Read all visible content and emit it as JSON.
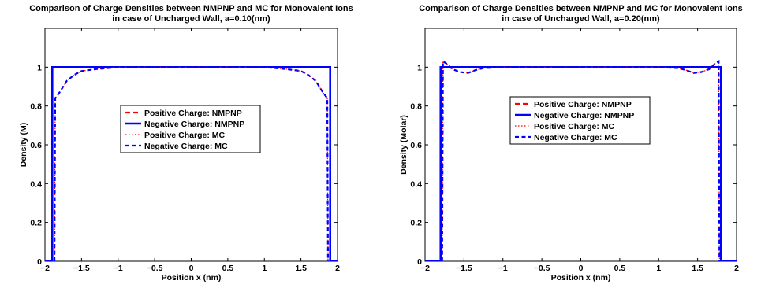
{
  "chart_data": [
    {
      "type": "line",
      "title": "Comparison of Charge Densities between NMPNP and MC for Monovalent Ions",
      "subtitle": "in case of Uncharged Wall, a=0.10(nm)",
      "xlabel": "Position x (nm)",
      "ylabel": "Density (M)",
      "xlim": [
        -2,
        2
      ],
      "ylim": [
        0,
        1.2
      ],
      "xticks": [
        "−2",
        "−1.5",
        "−1",
        "−0.5",
        "0",
        "0.5",
        "1",
        "1.5",
        "2"
      ],
      "yticks": [
        "0",
        "0.2",
        "0.4",
        "0.6",
        "0.8",
        "1"
      ],
      "legend_position": "center",
      "series": [
        {
          "name": "Positive Charge: NMPNP",
          "color": "#ff0000",
          "style": "dash-red",
          "points": [
            [
              -2,
              0
            ],
            [
              -1.9,
              0
            ],
            [
              -1.9,
              1
            ],
            [
              1.9,
              1
            ],
            [
              1.9,
              0
            ],
            [
              2,
              0
            ]
          ]
        },
        {
          "name": "Negative Charge: NMPNP",
          "color": "#0000ff",
          "style": "solid-blue",
          "points": [
            [
              -2,
              0
            ],
            [
              -1.9,
              0
            ],
            [
              -1.9,
              1
            ],
            [
              1.9,
              1
            ],
            [
              1.9,
              0
            ],
            [
              2,
              0
            ]
          ]
        },
        {
          "name": "Positive Charge: MC",
          "color": "#ff0000",
          "style": "dot-red",
          "points": [
            [
              -1.87,
              0
            ],
            [
              -1.86,
              0.84
            ],
            [
              -1.8,
              0.87
            ],
            [
              -1.7,
              0.93
            ],
            [
              -1.6,
              0.96
            ],
            [
              -1.5,
              0.98
            ],
            [
              -1.3,
              0.99
            ],
            [
              -1,
              1.0
            ],
            [
              -0.5,
              1.0
            ],
            [
              0,
              1.0
            ],
            [
              0.5,
              1.0
            ],
            [
              1,
              1.0
            ],
            [
              1.3,
              0.99
            ],
            [
              1.5,
              0.98
            ],
            [
              1.6,
              0.96
            ],
            [
              1.7,
              0.93
            ],
            [
              1.8,
              0.87
            ],
            [
              1.86,
              0.84
            ],
            [
              1.87,
              0
            ]
          ]
        },
        {
          "name": "Negative Charge: MC",
          "color": "#0000ff",
          "style": "dash-blue",
          "points": [
            [
              -1.87,
              0
            ],
            [
              -1.86,
              0.84
            ],
            [
              -1.8,
              0.87
            ],
            [
              -1.7,
              0.93
            ],
            [
              -1.6,
              0.96
            ],
            [
              -1.5,
              0.98
            ],
            [
              -1.3,
              0.99
            ],
            [
              -1,
              1.0
            ],
            [
              -0.5,
              1.0
            ],
            [
              0,
              1.0
            ],
            [
              0.5,
              1.0
            ],
            [
              1,
              1.0
            ],
            [
              1.3,
              0.99
            ],
            [
              1.5,
              0.98
            ],
            [
              1.6,
              0.96
            ],
            [
              1.7,
              0.93
            ],
            [
              1.8,
              0.87
            ],
            [
              1.86,
              0.84
            ],
            [
              1.87,
              0
            ]
          ]
        }
      ]
    },
    {
      "type": "line",
      "title": "Comparison of Charge Densities between NMPNP and MC for Monovalent Ions",
      "subtitle": "in case of Uncharged Wall, a=0.20(nm)",
      "xlabel": "Position x (nm)",
      "ylabel": "Density (Molar)",
      "xlim": [
        -2,
        2
      ],
      "ylim": [
        0,
        1.2
      ],
      "xticks": [
        "−2",
        "−1.5",
        "−1",
        "−0.5",
        "0",
        "0.5",
        "1",
        "1.5",
        "2"
      ],
      "yticks": [
        "0",
        "0.2",
        "0.4",
        "0.6",
        "0.8",
        "1"
      ],
      "legend_position": "center",
      "series": [
        {
          "name": "Positive Charge: NMPNP",
          "color": "#ff0000",
          "style": "dash-red",
          "points": [
            [
              -2,
              0
            ],
            [
              -1.8,
              0
            ],
            [
              -1.8,
              1
            ],
            [
              1.8,
              1
            ],
            [
              1.8,
              0
            ],
            [
              2,
              0
            ]
          ]
        },
        {
          "name": "Negative Charge: NMPNP",
          "color": "#0000ff",
          "style": "solid-blue",
          "points": [
            [
              -2,
              0
            ],
            [
              -1.8,
              0
            ],
            [
              -1.8,
              1
            ],
            [
              1.8,
              1
            ],
            [
              1.8,
              0
            ],
            [
              2,
              0
            ]
          ]
        },
        {
          "name": "Positive Charge: MC",
          "color": "#ff0000",
          "style": "dot-red",
          "points": [
            [
              -1.78,
              0
            ],
            [
              -1.77,
              1.03
            ],
            [
              -1.73,
              1.02
            ],
            [
              -1.65,
              0.99
            ],
            [
              -1.55,
              0.975
            ],
            [
              -1.45,
              0.97
            ],
            [
              -1.35,
              0.985
            ],
            [
              -1.25,
              0.995
            ],
            [
              -1,
              1.0
            ],
            [
              -0.5,
              1.0
            ],
            [
              0,
              1.0
            ],
            [
              0.5,
              1.0
            ],
            [
              1,
              1.0
            ],
            [
              1.25,
              0.995
            ],
            [
              1.35,
              0.985
            ],
            [
              1.45,
              0.97
            ],
            [
              1.55,
              0.975
            ],
            [
              1.65,
              0.99
            ],
            [
              1.73,
              1.02
            ],
            [
              1.77,
              1.03
            ],
            [
              1.78,
              0
            ]
          ]
        },
        {
          "name": "Negative Charge: MC",
          "color": "#0000ff",
          "style": "dash-blue",
          "points": [
            [
              -1.78,
              0
            ],
            [
              -1.77,
              1.03
            ],
            [
              -1.73,
              1.02
            ],
            [
              -1.65,
              0.99
            ],
            [
              -1.55,
              0.975
            ],
            [
              -1.45,
              0.97
            ],
            [
              -1.35,
              0.985
            ],
            [
              -1.25,
              0.995
            ],
            [
              -1,
              1.0
            ],
            [
              -0.5,
              1.0
            ],
            [
              0,
              1.0
            ],
            [
              0.5,
              1.0
            ],
            [
              1,
              1.0
            ],
            [
              1.25,
              0.995
            ],
            [
              1.35,
              0.985
            ],
            [
              1.45,
              0.97
            ],
            [
              1.55,
              0.975
            ],
            [
              1.65,
              0.99
            ],
            [
              1.73,
              1.02
            ],
            [
              1.77,
              1.03
            ],
            [
              1.78,
              0
            ]
          ]
        }
      ]
    }
  ]
}
